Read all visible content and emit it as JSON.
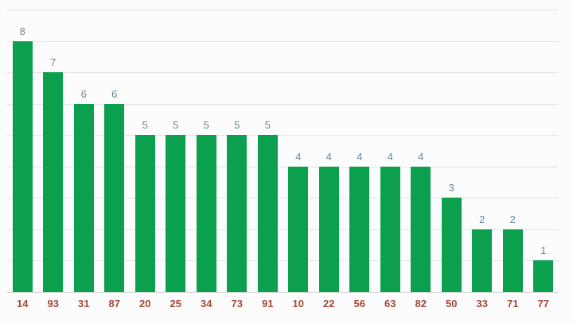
{
  "chart_data": {
    "type": "bar",
    "title": "",
    "xlabel": "",
    "ylabel": "",
    "categories": [
      "14",
      "93",
      "31",
      "87",
      "20",
      "25",
      "34",
      "73",
      "91",
      "10",
      "22",
      "56",
      "63",
      "82",
      "50",
      "33",
      "71",
      "77"
    ],
    "values": [
      8,
      7,
      6,
      6,
      5,
      5,
      5,
      5,
      5,
      4,
      4,
      4,
      4,
      4,
      3,
      2,
      2,
      1
    ],
    "ylim": [
      0,
      9
    ],
    "gridline_step": 1,
    "grid": true,
    "legend": "none",
    "value_labels_shown": true,
    "y_axis_labels_shown": false
  },
  "style": {
    "bar_color": "#0ba04e",
    "gridline_color": "#e4e4e4",
    "baseline_color": "#d8d8d8",
    "value_label_color": "#6c8595",
    "category_label_color": "#a04a3a",
    "background_color": "#fcfcfc"
  }
}
